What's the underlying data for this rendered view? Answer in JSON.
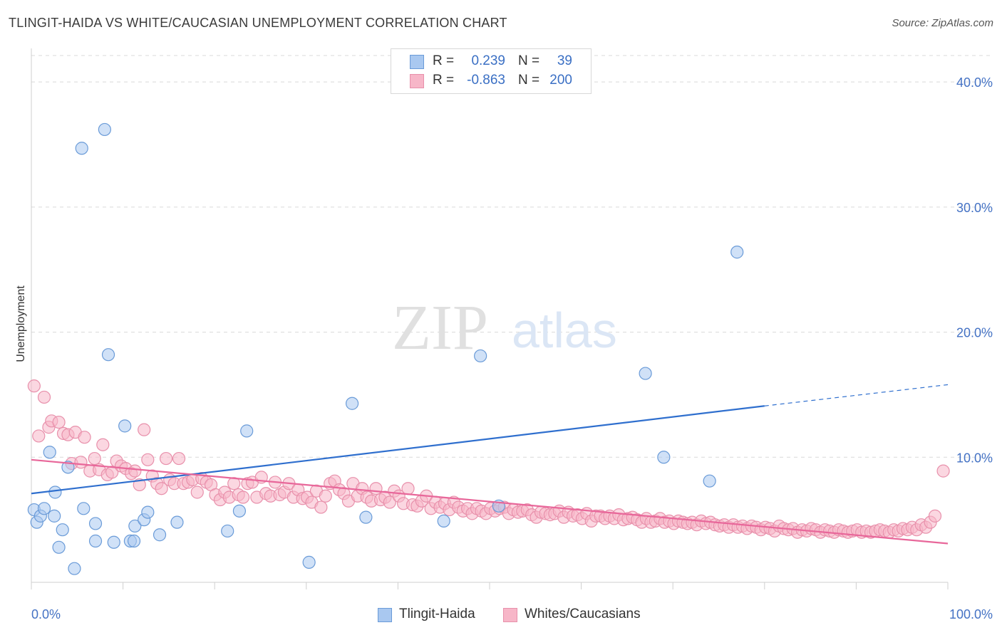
{
  "header": {
    "title": "TLINGIT-HAIDA VS WHITE/CAUCASIAN UNEMPLOYMENT CORRELATION CHART",
    "source": "Source: ZipAtlas.com"
  },
  "watermark": {
    "zip": "ZIP",
    "atlas": "atlas"
  },
  "legend": {
    "rows": [
      {
        "r_label": "R =",
        "r_value": "0.239",
        "n_label": "N =",
        "n_value": "39",
        "color": "#a9c8f0"
      },
      {
        "r_label": "R =",
        "r_value": "-0.863",
        "n_label": "N =",
        "n_value": "200",
        "color": "#f7b6c8"
      }
    ]
  },
  "bottom_legend": {
    "series1": "Tlingit-Haida",
    "series2": "Whites/Caucasians"
  },
  "colors": {
    "blue_fill": "#a9c8f0",
    "blue_stroke": "#6a9bd8",
    "blue_line": "#2f6fce",
    "pink_fill": "#f7b6c8",
    "pink_stroke": "#e890ab",
    "pink_line": "#e8679a",
    "grid": "#d9d9d9",
    "tick_text": "#4472c4"
  },
  "chart_data": {
    "type": "scatter",
    "title": "TLINGIT-HAIDA VS WHITE/CAUCASIAN UNEMPLOYMENT CORRELATION CHART",
    "xlabel": "",
    "ylabel": "Unemployment",
    "xlim": [
      0,
      100
    ],
    "ylim": [
      0,
      42
    ],
    "x_tick_labels": [
      "0.0%",
      "100.0%"
    ],
    "y_ticks": [
      10,
      20,
      30,
      40
    ],
    "y_tick_labels": [
      "10.0%",
      "20.0%",
      "30.0%",
      "40.0%"
    ],
    "grid": true,
    "legend_position": "top-center",
    "series": [
      {
        "name": "Tlingit-Haida",
        "r": 0.239,
        "n": 39,
        "trend": {
          "x0": 0,
          "y0": 7.1,
          "x1": 80,
          "y1": 14.1,
          "dashed_to_x": 100,
          "dashed_to_y": 15.8
        },
        "points": [
          [
            0.3,
            5.8
          ],
          [
            0.6,
            4.8
          ],
          [
            1.0,
            5.3
          ],
          [
            1.4,
            5.9
          ],
          [
            2.0,
            10.4
          ],
          [
            2.5,
            5.3
          ],
          [
            2.6,
            7.2
          ],
          [
            3.0,
            2.8
          ],
          [
            3.4,
            4.2
          ],
          [
            4.0,
            9.2
          ],
          [
            4.7,
            1.1
          ],
          [
            5.5,
            34.7
          ],
          [
            5.7,
            5.9
          ],
          [
            7.0,
            3.3
          ],
          [
            7.0,
            4.7
          ],
          [
            8.0,
            36.2
          ],
          [
            8.4,
            18.2
          ],
          [
            9.0,
            3.2
          ],
          [
            10.2,
            12.5
          ],
          [
            10.8,
            3.3
          ],
          [
            11.2,
            3.3
          ],
          [
            11.3,
            4.5
          ],
          [
            12.3,
            5.0
          ],
          [
            12.7,
            5.6
          ],
          [
            14.0,
            3.8
          ],
          [
            15.9,
            4.8
          ],
          [
            21.4,
            4.1
          ],
          [
            22.7,
            5.7
          ],
          [
            23.5,
            12.1
          ],
          [
            30.3,
            1.6
          ],
          [
            35.0,
            14.3
          ],
          [
            36.5,
            5.2
          ],
          [
            45.0,
            4.9
          ],
          [
            49.0,
            18.1
          ],
          [
            51.0,
            6.1
          ],
          [
            67.0,
            16.7
          ],
          [
            69.0,
            10.0
          ],
          [
            74.0,
            8.1
          ],
          [
            77.0,
            26.4
          ]
        ]
      },
      {
        "name": "Whites/Caucasians",
        "r": -0.863,
        "n": 200,
        "trend": {
          "x0": 0,
          "y0": 9.8,
          "x1": 100,
          "y1": 3.1
        },
        "points": [
          [
            0.3,
            15.7
          ],
          [
            0.8,
            11.7
          ],
          [
            1.4,
            14.8
          ],
          [
            1.9,
            12.4
          ],
          [
            2.2,
            12.9
          ],
          [
            3.0,
            12.8
          ],
          [
            3.5,
            11.9
          ],
          [
            4.0,
            11.8
          ],
          [
            4.4,
            9.5
          ],
          [
            4.8,
            12.0
          ],
          [
            5.4,
            9.6
          ],
          [
            5.8,
            11.6
          ],
          [
            6.4,
            8.9
          ],
          [
            6.9,
            9.9
          ],
          [
            7.4,
            9.0
          ],
          [
            7.8,
            11.0
          ],
          [
            8.3,
            8.6
          ],
          [
            8.8,
            8.8
          ],
          [
            9.3,
            9.7
          ],
          [
            9.8,
            9.3
          ],
          [
            10.3,
            9.1
          ],
          [
            10.9,
            8.7
          ],
          [
            11.3,
            8.9
          ],
          [
            11.8,
            7.8
          ],
          [
            12.3,
            12.2
          ],
          [
            12.7,
            9.8
          ],
          [
            13.2,
            8.5
          ],
          [
            13.7,
            7.9
          ],
          [
            14.2,
            7.5
          ],
          [
            14.7,
            9.9
          ],
          [
            15.1,
            8.2
          ],
          [
            15.6,
            7.9
          ],
          [
            16.1,
            9.9
          ],
          [
            16.6,
            7.9
          ],
          [
            17.1,
            8.0
          ],
          [
            17.6,
            8.2
          ],
          [
            18.1,
            7.2
          ],
          [
            18.6,
            8.3
          ],
          [
            19.1,
            8.0
          ],
          [
            19.6,
            7.8
          ],
          [
            20.1,
            7.0
          ],
          [
            20.6,
            6.6
          ],
          [
            21.1,
            7.2
          ],
          [
            21.6,
            6.8
          ],
          [
            22.1,
            7.9
          ],
          [
            22.6,
            7.0
          ],
          [
            23.1,
            6.8
          ],
          [
            23.6,
            7.9
          ],
          [
            24.1,
            8.0
          ],
          [
            24.6,
            6.8
          ],
          [
            25.1,
            8.4
          ],
          [
            25.6,
            7.1
          ],
          [
            26.1,
            6.9
          ],
          [
            26.6,
            8.0
          ],
          [
            27.1,
            7.0
          ],
          [
            27.6,
            7.2
          ],
          [
            28.1,
            7.9
          ],
          [
            28.6,
            6.8
          ],
          [
            29.1,
            7.4
          ],
          [
            29.6,
            6.7
          ],
          [
            30.1,
            6.8
          ],
          [
            30.6,
            6.4
          ],
          [
            31.1,
            7.3
          ],
          [
            31.6,
            6.0
          ],
          [
            32.1,
            6.9
          ],
          [
            32.6,
            7.9
          ],
          [
            33.1,
            8.1
          ],
          [
            33.6,
            7.4
          ],
          [
            34.1,
            7.1
          ],
          [
            34.6,
            6.5
          ],
          [
            35.1,
            7.9
          ],
          [
            35.6,
            6.9
          ],
          [
            36.1,
            7.5
          ],
          [
            36.6,
            6.8
          ],
          [
            37.1,
            6.5
          ],
          [
            37.6,
            7.5
          ],
          [
            38.1,
            6.6
          ],
          [
            38.6,
            6.8
          ],
          [
            39.1,
            6.4
          ],
          [
            39.6,
            7.3
          ],
          [
            40.1,
            6.9
          ],
          [
            40.6,
            6.3
          ],
          [
            41.1,
            7.5
          ],
          [
            41.6,
            6.2
          ],
          [
            42.1,
            6.1
          ],
          [
            42.6,
            6.5
          ],
          [
            43.1,
            6.9
          ],
          [
            43.6,
            5.9
          ],
          [
            44.1,
            6.4
          ],
          [
            44.6,
            6.0
          ],
          [
            45.1,
            6.3
          ],
          [
            45.6,
            5.8
          ],
          [
            46.1,
            6.4
          ],
          [
            46.6,
            6.0
          ],
          [
            47.1,
            5.7
          ],
          [
            47.6,
            5.9
          ],
          [
            48.1,
            5.5
          ],
          [
            48.6,
            5.9
          ],
          [
            49.1,
            5.7
          ],
          [
            49.6,
            5.5
          ],
          [
            50.1,
            5.9
          ],
          [
            50.6,
            5.7
          ],
          [
            51.1,
            5.9
          ],
          [
            51.6,
            6.0
          ],
          [
            52.1,
            5.5
          ],
          [
            52.6,
            5.8
          ],
          [
            53.1,
            5.6
          ],
          [
            53.6,
            5.7
          ],
          [
            54.1,
            5.8
          ],
          [
            54.6,
            5.4
          ],
          [
            55.1,
            5.2
          ],
          [
            55.6,
            5.6
          ],
          [
            56.1,
            5.5
          ],
          [
            56.6,
            5.4
          ],
          [
            57.1,
            5.5
          ],
          [
            57.6,
            5.7
          ],
          [
            58.1,
            5.2
          ],
          [
            58.6,
            5.6
          ],
          [
            59.1,
            5.3
          ],
          [
            59.6,
            5.4
          ],
          [
            60.1,
            5.1
          ],
          [
            60.6,
            5.5
          ],
          [
            61.1,
            4.9
          ],
          [
            61.6,
            5.3
          ],
          [
            62.1,
            5.3
          ],
          [
            62.6,
            5.1
          ],
          [
            63.1,
            5.3
          ],
          [
            63.6,
            5.1
          ],
          [
            64.1,
            5.4
          ],
          [
            64.6,
            5.0
          ],
          [
            65.1,
            5.1
          ],
          [
            65.6,
            5.2
          ],
          [
            66.1,
            5.0
          ],
          [
            66.6,
            4.8
          ],
          [
            67.1,
            5.1
          ],
          [
            67.6,
            4.8
          ],
          [
            68.1,
            4.9
          ],
          [
            68.6,
            5.1
          ],
          [
            69.1,
            4.8
          ],
          [
            69.6,
            4.9
          ],
          [
            70.1,
            4.7
          ],
          [
            70.6,
            4.9
          ],
          [
            71.1,
            4.8
          ],
          [
            71.6,
            4.7
          ],
          [
            72.1,
            4.8
          ],
          [
            72.6,
            4.6
          ],
          [
            73.1,
            4.9
          ],
          [
            73.6,
            4.7
          ],
          [
            74.1,
            4.8
          ],
          [
            74.6,
            4.6
          ],
          [
            75.1,
            4.5
          ],
          [
            75.6,
            4.6
          ],
          [
            76.1,
            4.4
          ],
          [
            76.6,
            4.6
          ],
          [
            77.1,
            4.4
          ],
          [
            77.6,
            4.5
          ],
          [
            78.1,
            4.3
          ],
          [
            78.6,
            4.5
          ],
          [
            79.1,
            4.4
          ],
          [
            79.6,
            4.2
          ],
          [
            80.1,
            4.4
          ],
          [
            80.6,
            4.3
          ],
          [
            81.1,
            4.1
          ],
          [
            81.6,
            4.5
          ],
          [
            82.1,
            4.3
          ],
          [
            82.6,
            4.2
          ],
          [
            83.1,
            4.3
          ],
          [
            83.6,
            4.0
          ],
          [
            84.1,
            4.2
          ],
          [
            84.6,
            4.1
          ],
          [
            85.1,
            4.3
          ],
          [
            85.6,
            4.2
          ],
          [
            86.1,
            4.0
          ],
          [
            86.6,
            4.2
          ],
          [
            87.1,
            4.1
          ],
          [
            87.6,
            4.0
          ],
          [
            88.1,
            4.2
          ],
          [
            88.6,
            4.1
          ],
          [
            89.1,
            4.0
          ],
          [
            89.6,
            4.1
          ],
          [
            90.1,
            4.2
          ],
          [
            90.6,
            4.0
          ],
          [
            91.1,
            4.1
          ],
          [
            91.6,
            4.0
          ],
          [
            92.1,
            4.1
          ],
          [
            92.6,
            4.2
          ],
          [
            93.1,
            4.1
          ],
          [
            93.6,
            4.0
          ],
          [
            94.1,
            4.2
          ],
          [
            94.6,
            4.1
          ],
          [
            95.1,
            4.3
          ],
          [
            95.6,
            4.2
          ],
          [
            96.1,
            4.4
          ],
          [
            96.6,
            4.2
          ],
          [
            97.1,
            4.6
          ],
          [
            97.6,
            4.4
          ],
          [
            98.1,
            4.8
          ],
          [
            98.6,
            5.3
          ],
          [
            99.5,
            8.9
          ]
        ]
      }
    ]
  }
}
